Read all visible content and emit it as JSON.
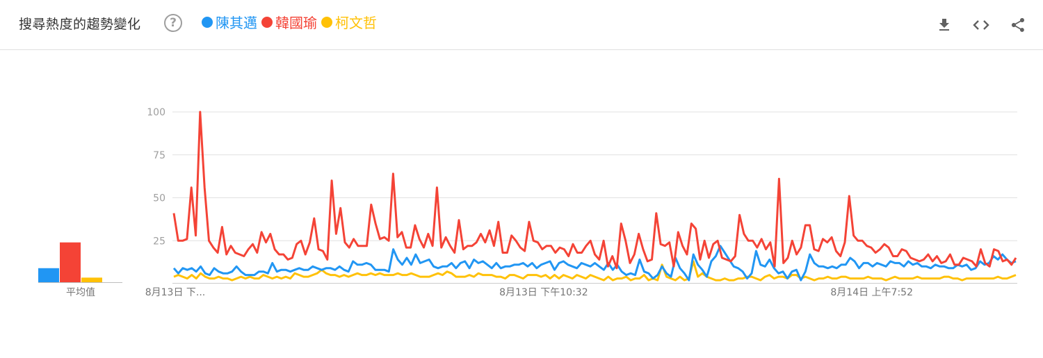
{
  "header": {
    "title": "搜尋熱度的趨勢變化",
    "help_symbol": "?",
    "legend": [
      {
        "name": "陳其邁",
        "color": "#2196f3"
      },
      {
        "name": "韓國瑜",
        "color": "#f44336"
      },
      {
        "name": "柯文哲",
        "color": "#ffc107"
      }
    ],
    "tools": [
      "download-icon",
      "embed-icon",
      "share-icon"
    ]
  },
  "average": {
    "label": "平均值",
    "values": [
      9,
      24,
      3.5
    ]
  },
  "chart_data": {
    "type": "line",
    "ylim": [
      0,
      100
    ],
    "y_ticks": [
      25,
      50,
      75,
      100
    ],
    "x_tick_labels": [
      "8月13日 下...",
      "8月13日 下午10:32",
      "8月14日 上午7:52"
    ],
    "x_tick_positions": [
      0,
      0.39,
      0.78
    ],
    "grid": true,
    "series": [
      {
        "name": "陳其邁",
        "color": "#2196f3",
        "values": [
          9,
          6,
          9,
          8,
          9,
          7,
          10,
          6,
          5,
          9,
          7,
          6,
          6,
          7,
          10,
          7,
          5,
          5,
          5,
          7,
          7,
          6,
          12,
          7,
          8,
          8,
          7,
          8,
          9,
          8,
          8,
          10,
          9,
          8,
          9,
          9,
          8,
          10,
          8,
          7,
          13,
          11,
          11,
          12,
          11,
          8,
          8,
          8,
          7,
          20,
          14,
          11,
          15,
          11,
          17,
          12,
          13,
          14,
          10,
          9,
          10,
          10,
          12,
          9,
          12,
          13,
          9,
          14,
          12,
          13,
          11,
          9,
          12,
          9,
          10,
          10,
          11,
          11,
          12,
          10,
          12,
          9,
          11,
          12,
          13,
          8,
          12,
          13,
          11,
          10,
          9,
          12,
          11,
          10,
          12,
          10,
          8,
          12,
          8,
          11,
          7,
          5,
          6,
          5,
          14,
          7,
          6,
          3,
          5,
          10,
          6,
          4,
          15,
          9,
          6,
          2,
          17,
          11,
          8,
          4,
          13,
          16,
          22,
          18,
          14,
          10,
          9,
          7,
          3,
          6,
          19,
          11,
          10,
          14,
          9,
          6,
          7,
          3,
          7,
          8,
          2,
          7,
          17,
          12,
          10,
          10,
          9,
          10,
          9,
          11,
          11,
          15,
          13,
          9,
          12,
          12,
          10,
          12,
          11,
          10,
          13,
          12,
          12,
          10,
          13,
          11,
          12,
          10,
          10,
          9,
          11,
          10,
          10,
          9,
          9,
          11,
          10,
          11,
          8,
          9,
          13,
          11,
          12,
          16,
          14,
          17,
          14,
          12,
          13
        ]
      },
      {
        "name": "韓國瑜",
        "color": "#f44336",
        "values": [
          41,
          25,
          25,
          26,
          56,
          28,
          100,
          56,
          25,
          21,
          18,
          33,
          17,
          22,
          18,
          17,
          16,
          20,
          23,
          18,
          30,
          24,
          29,
          20,
          17,
          17,
          14,
          15,
          23,
          25,
          17,
          24,
          38,
          20,
          19,
          14,
          60,
          29,
          44,
          24,
          21,
          26,
          22,
          22,
          22,
          46,
          35,
          26,
          27,
          25,
          64,
          27,
          30,
          21,
          21,
          34,
          26,
          21,
          29,
          22,
          56,
          21,
          27,
          22,
          18,
          37,
          20,
          22,
          22,
          24,
          29,
          24,
          31,
          22,
          36,
          18,
          18,
          28,
          25,
          21,
          19,
          36,
          25,
          24,
          20,
          22,
          22,
          18,
          21,
          20,
          16,
          23,
          18,
          18,
          22,
          25,
          17,
          14,
          25,
          10,
          16,
          9,
          35,
          25,
          12,
          17,
          29,
          20,
          13,
          14,
          41,
          23,
          22,
          24,
          10,
          30,
          22,
          17,
          35,
          32,
          14,
          25,
          15,
          23,
          25,
          15,
          14,
          13,
          16,
          40,
          29,
          25,
          25,
          21,
          26,
          20,
          24,
          10,
          61,
          12,
          15,
          25,
          17,
          21,
          34,
          34,
          20,
          19,
          26,
          24,
          27,
          19,
          16,
          24,
          51,
          28,
          25,
          25,
          22,
          21,
          18,
          20,
          23,
          21,
          16,
          16,
          20,
          19,
          15,
          14,
          13,
          14,
          17,
          13,
          16,
          12,
          13,
          17,
          11,
          11,
          15,
          14,
          13,
          10,
          20,
          12,
          10,
          20,
          19,
          13,
          14,
          11,
          15
        ]
      },
      {
        "name": "柯文哲",
        "color": "#ffc107",
        "values": [
          4,
          5,
          4,
          3,
          5,
          3,
          6,
          4,
          3,
          3,
          4,
          3,
          3,
          2,
          3,
          4,
          3,
          4,
          3,
          3,
          5,
          4,
          3,
          4,
          3,
          4,
          3,
          6,
          5,
          4,
          4,
          5,
          6,
          8,
          6,
          5,
          5,
          4,
          5,
          4,
          5,
          6,
          5,
          5,
          6,
          5,
          6,
          5,
          5,
          5,
          6,
          5,
          5,
          6,
          5,
          4,
          4,
          4,
          5,
          6,
          5,
          7,
          6,
          4,
          4,
          4,
          5,
          4,
          6,
          5,
          5,
          5,
          4,
          4,
          3,
          5,
          5,
          4,
          3,
          5,
          5,
          5,
          4,
          5,
          3,
          5,
          3,
          5,
          4,
          3,
          5,
          4,
          3,
          5,
          4,
          3,
          2,
          4,
          2,
          3,
          3,
          4,
          2,
          3,
          3,
          5,
          2,
          3,
          2,
          11,
          4,
          3,
          2,
          4,
          2,
          3,
          13,
          4,
          6,
          4,
          3,
          2,
          2,
          3,
          2,
          2,
          3,
          3,
          4,
          4,
          3,
          2,
          4,
          5,
          3,
          4,
          4,
          3,
          5,
          5,
          3,
          4,
          3,
          2,
          3,
          3,
          4,
          3,
          3,
          4,
          4,
          3,
          3,
          3,
          3,
          4,
          3,
          3,
          3,
          2,
          3,
          4,
          3,
          3,
          3,
          3,
          4,
          3,
          3,
          3,
          3,
          3,
          4,
          4,
          3,
          3,
          2,
          3,
          3,
          3,
          3,
          3,
          3,
          3,
          4,
          3,
          3,
          4,
          5
        ]
      }
    ]
  }
}
